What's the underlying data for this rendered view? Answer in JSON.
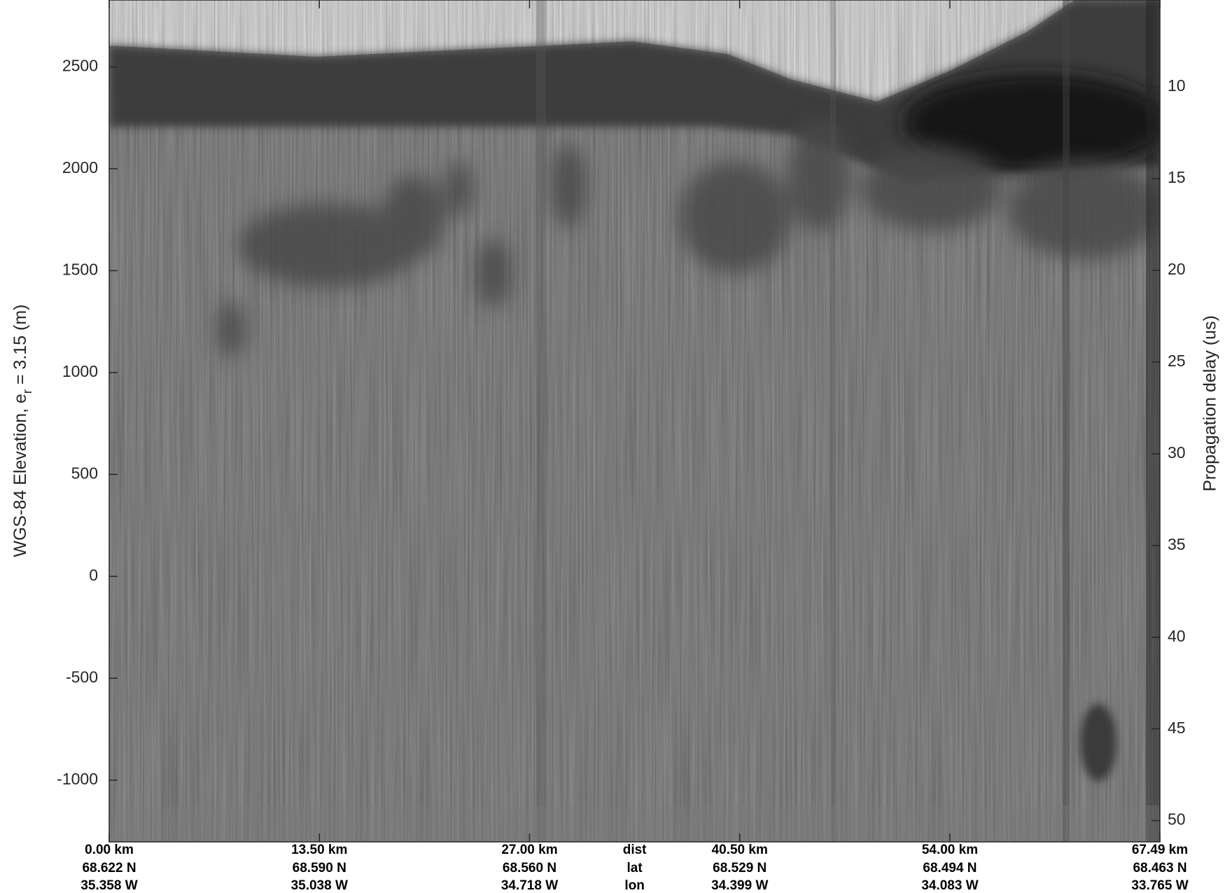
{
  "chart_data": {
    "type": "radargram",
    "ylabel": [
      "WGS-84 Elevation, e",
      "r",
      " = 3.15 (m)"
    ],
    "y2label": "Propagation delay (us)",
    "xlim": [
      0,
      67.49
    ],
    "xticks": [
      {
        "value": 0,
        "label": "0.00 km"
      },
      {
        "value": 13.5,
        "label": "13.50 km"
      },
      {
        "value": 27,
        "label": "27.00 km"
      },
      {
        "value": 40.5,
        "label": "40.50 km"
      },
      {
        "value": 54,
        "label": "54.00 km"
      },
      {
        "value": 67.49,
        "label": "67.49 km"
      }
    ],
    "xrow_names": [
      "dist",
      "lat",
      "lon"
    ],
    "lat_labels": [
      "68.622 N",
      "68.590 N",
      "68.560 N",
      "68.529 N",
      "68.494 N",
      "68.463 N"
    ],
    "lon_labels": [
      "35.358 W",
      "35.038 W",
      "34.718 W",
      "34.399 W",
      "34.083 W",
      "33.765 W"
    ],
    "ylim": [
      -1303,
      2828
    ],
    "yticks": [
      -1000,
      -500,
      0,
      500,
      1000,
      1500,
      2000,
      2500
    ],
    "y2lim": [
      5.26,
      51.16
    ],
    "y2ticks": [
      10,
      15,
      20,
      25,
      30,
      35,
      40,
      45,
      50
    ]
  }
}
